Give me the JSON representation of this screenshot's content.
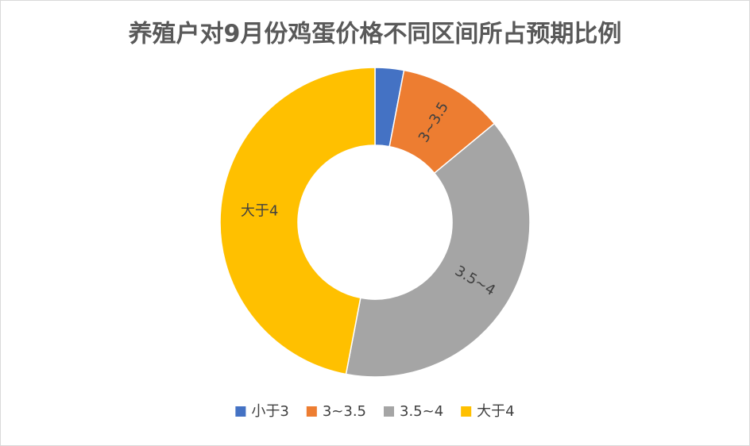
{
  "chart_data": {
    "type": "donut",
    "title": "养殖户对9月份鸡蛋价格不同区间所占预期比例",
    "categories": [
      "小于3",
      "3~3.5",
      "3.5~4",
      "大于4"
    ],
    "values": [
      3,
      11,
      39,
      47
    ],
    "colors": [
      "#4472c4",
      "#ed7d31",
      "#a5a5a5",
      "#ffc000"
    ],
    "legend": "bottom"
  }
}
